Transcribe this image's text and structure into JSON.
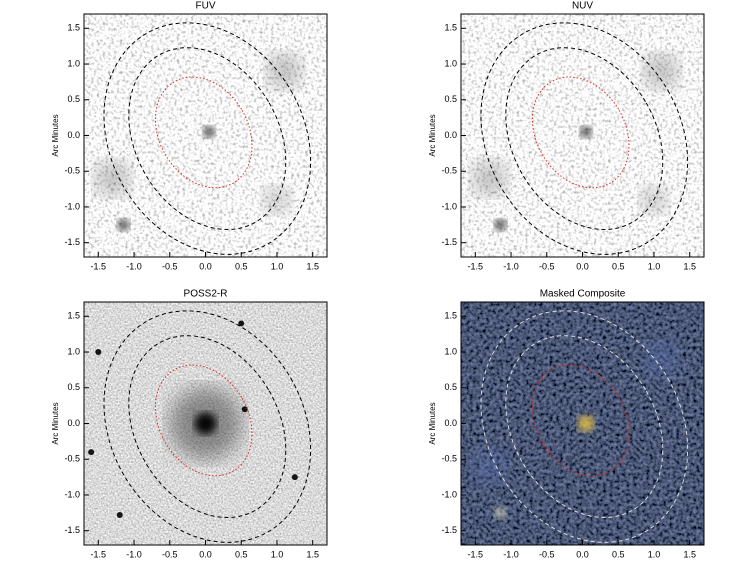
{
  "chart_data": [
    {
      "type": "image",
      "title": "FUV",
      "ylabel": "Arc Minutes",
      "theme": "light",
      "xlim": [
        -1.7,
        1.7
      ],
      "ylim": [
        -1.7,
        1.7
      ],
      "xticks": [
        -1.5,
        {
          "value": -1,
          "label": "-1.0"
        },
        -0.5,
        {
          "value": 0,
          "label": "0.0"
        },
        0.5,
        {
          "value": 1,
          "label": "1.0"
        },
        1.5
      ],
      "yticks": [
        -1.5,
        {
          "value": -1,
          "label": "-1.0"
        },
        -0.5,
        {
          "value": 0,
          "label": "0.0"
        },
        0.5,
        {
          "value": 1,
          "label": "1.0"
        },
        1.5
      ]
    },
    {
      "type": "image",
      "title": "NUV",
      "ylabel": "Arc Minutes",
      "theme": "light",
      "xlim": [
        -1.7,
        1.7
      ],
      "ylim": [
        -1.7,
        1.7
      ],
      "xticks": [
        -1.5,
        {
          "value": -1,
          "label": "-1.0"
        },
        -0.5,
        {
          "value": 0,
          "label": "0.0"
        },
        0.5,
        {
          "value": 1,
          "label": "1.0"
        },
        1.5
      ],
      "yticks": [
        -1.5,
        {
          "value": -1,
          "label": "-1.0"
        },
        -0.5,
        {
          "value": 0,
          "label": "0.0"
        },
        0.5,
        {
          "value": 1,
          "label": "1.0"
        },
        1.5
      ]
    },
    {
      "type": "image",
      "title": "POSS2-R",
      "ylabel": "Arc Minutes",
      "theme": "gray",
      "xlim": [
        -1.7,
        1.7
      ],
      "ylim": [
        -1.7,
        1.7
      ],
      "xticks": [
        -1.5,
        {
          "value": -1,
          "label": "-1.0"
        },
        -0.5,
        {
          "value": 0,
          "label": "0.0"
        },
        0.5,
        {
          "value": 1,
          "label": "1.0"
        },
        1.5
      ],
      "yticks": [
        -1.5,
        {
          "value": -1,
          "label": "-1.0"
        },
        -0.5,
        {
          "value": 0,
          "label": "0.0"
        },
        0.5,
        {
          "value": 1,
          "label": "1.0"
        },
        1.5
      ]
    },
    {
      "type": "image",
      "title": "Masked Composite",
      "ylabel": "Arc Minutes",
      "theme": "dark",
      "xlim": [
        -1.7,
        1.7
      ],
      "ylim": [
        -1.7,
        1.7
      ],
      "xticks": [
        -1.5,
        {
          "value": -1,
          "label": "-1.0"
        },
        -0.5,
        {
          "value": 0,
          "label": "0.0"
        },
        0.5,
        {
          "value": 1,
          "label": "1.0"
        },
        1.5
      ],
      "yticks": [
        -1.5,
        {
          "value": -1,
          "label": "-1.0"
        },
        -0.5,
        {
          "value": 0,
          "label": "0.0"
        },
        0.5,
        {
          "value": 1,
          "label": "1.0"
        },
        1.5
      ]
    }
  ]
}
